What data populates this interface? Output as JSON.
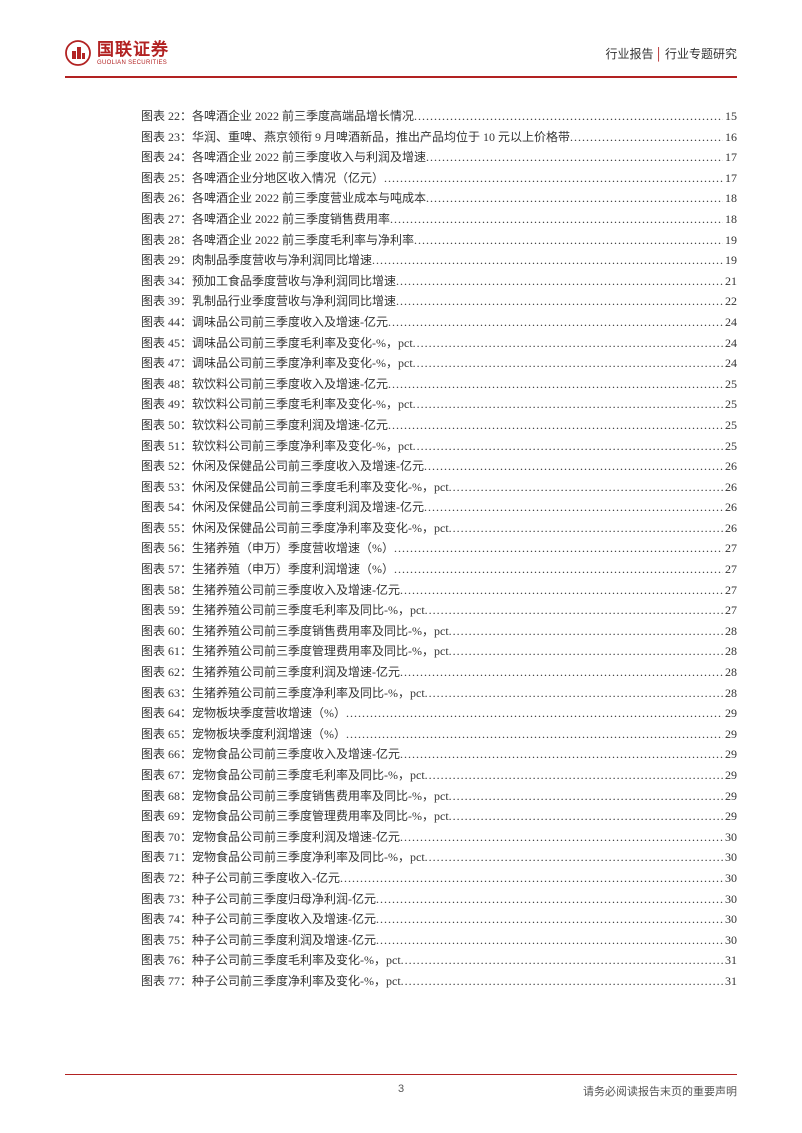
{
  "header": {
    "logo_cn": "国联证券",
    "logo_en": "GUOLIAN SECURITIES",
    "right_a": "行业报告",
    "right_b": "行业专题研究"
  },
  "colors": {
    "accent": "#b22222",
    "text": "#333333",
    "footer_text": "#555555",
    "background": "#ffffff"
  },
  "toc": [
    {
      "label": "图表 22：各啤酒企业 2022 前三季度高端品增长情况",
      "page": "15"
    },
    {
      "label": "图表 23：华润、重啤、燕京领衔 9 月啤酒新品，推出产品均位于 10 元以上价格带",
      "page": "16"
    },
    {
      "label": "图表 24：各啤酒企业 2022 前三季度收入与利润及增速",
      "page": "17"
    },
    {
      "label": "图表 25：各啤酒企业分地区收入情况（亿元）",
      "page": "17"
    },
    {
      "label": "图表 26：各啤酒企业 2022 前三季度营业成本与吨成本",
      "page": "18"
    },
    {
      "label": "图表 27：各啤酒企业 2022 前三季度销售费用率",
      "page": "18"
    },
    {
      "label": "图表 28：各啤酒企业 2022 前三季度毛利率与净利率",
      "page": "19"
    },
    {
      "label": "图表 29：肉制品季度营收与净利润同比增速",
      "page": "19"
    },
    {
      "label": "图表 34：预加工食品季度营收与净利润同比增速",
      "page": "21"
    },
    {
      "label": "图表 39：乳制品行业季度营收与净利润同比增速",
      "page": "22"
    },
    {
      "label": "图表 44：调味品公司前三季度收入及增速-亿元",
      "page": "24"
    },
    {
      "label": "图表 45：调味品公司前三季度毛利率及变化-%，pct",
      "page": "24"
    },
    {
      "label": "图表 47：调味品公司前三季度净利率及变化-%，pct",
      "page": "24"
    },
    {
      "label": "图表 48：软饮料公司前三季度收入及增速-亿元",
      "page": "25"
    },
    {
      "label": "图表 49：软饮料公司前三季度毛利率及变化-%，pct",
      "page": "25"
    },
    {
      "label": "图表 50：软饮料公司前三季度利润及增速-亿元",
      "page": "25"
    },
    {
      "label": "图表 51：软饮料公司前三季度净利率及变化-%，pct",
      "page": "25"
    },
    {
      "label": "图表 52：休闲及保健品公司前三季度收入及增速-亿元",
      "page": "26"
    },
    {
      "label": "图表 53：休闲及保健品公司前三季度毛利率及变化-%，pct",
      "page": "26"
    },
    {
      "label": "图表 54：休闲及保健品公司前三季度利润及增速-亿元",
      "page": "26"
    },
    {
      "label": "图表 55：休闲及保健品公司前三季度净利率及变化-%，pct",
      "page": "26"
    },
    {
      "label": "图表 56：生猪养殖（申万）季度营收增速（%）",
      "page": "27"
    },
    {
      "label": "图表 57：生猪养殖（申万）季度利润增速（%）",
      "page": "27"
    },
    {
      "label": "图表 58：生猪养殖公司前三季度收入及增速-亿元",
      "page": "27"
    },
    {
      "label": "图表 59：生猪养殖公司前三季度毛利率及同比-%，pct",
      "page": "27"
    },
    {
      "label": "图表 60：生猪养殖公司前三季度销售费用率及同比-%，pct",
      "page": "28"
    },
    {
      "label": "图表 61：生猪养殖公司前三季度管理费用率及同比-%，pct",
      "page": "28"
    },
    {
      "label": "图表 62：生猪养殖公司前三季度利润及增速-亿元",
      "page": "28"
    },
    {
      "label": "图表 63：生猪养殖公司前三季度净利率及同比-%，pct",
      "page": "28"
    },
    {
      "label": "图表 64：宠物板块季度营收增速（%）",
      "page": "29"
    },
    {
      "label": "图表 65：宠物板块季度利润增速（%）",
      "page": "29"
    },
    {
      "label": "图表 66：宠物食品公司前三季度收入及增速-亿元",
      "page": "29"
    },
    {
      "label": "图表 67：宠物食品公司前三季度毛利率及同比-%，pct",
      "page": "29"
    },
    {
      "label": "图表 68：宠物食品公司前三季度销售费用率及同比-%，pct",
      "page": "29"
    },
    {
      "label": "图表 69：宠物食品公司前三季度管理费用率及同比-%，pct",
      "page": "29"
    },
    {
      "label": "图表 70：宠物食品公司前三季度利润及增速-亿元",
      "page": "30"
    },
    {
      "label": "图表 71：宠物食品公司前三季度净利率及同比-%，pct",
      "page": "30"
    },
    {
      "label": "图表 72：种子公司前三季度收入-亿元",
      "page": "30"
    },
    {
      "label": "图表 73：种子公司前三季度归母净利润-亿元",
      "page": "30"
    },
    {
      "label": "图表 74：种子公司前三季度收入及增速-亿元",
      "page": "30"
    },
    {
      "label": "图表 75：种子公司前三季度利润及增速-亿元",
      "page": "30"
    },
    {
      "label": "图表 76：种子公司前三季度毛利率及变化-%，pct",
      "page": "31"
    },
    {
      "label": "图表 77：种子公司前三季度净利率及变化-%，pct",
      "page": "31"
    }
  ],
  "footer": {
    "page_number": "3",
    "disclaimer": "请务必阅读报告末页的重要声明"
  }
}
